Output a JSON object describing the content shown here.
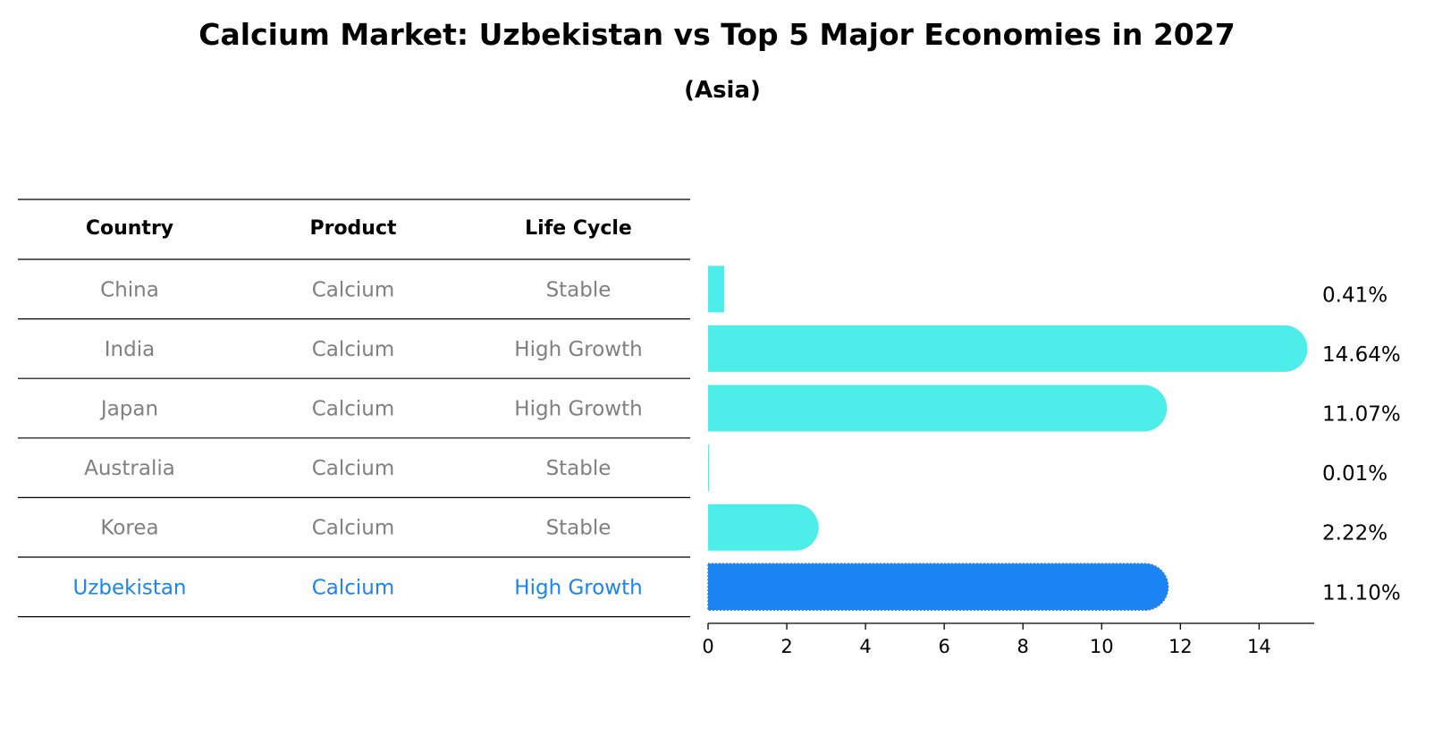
{
  "title": "Calcium Market: Uzbekistan vs Top 5 Major Economies in 2027",
  "subtitle": "(Asia)",
  "colors": {
    "bar": "#4DEEEA",
    "highlight_bar": "#1A85F2",
    "highlight_text": "#1A85F2",
    "row_text": "#808080",
    "rule": "#000000"
  },
  "table": {
    "headers": [
      "Country",
      "Product",
      "Life Cycle"
    ],
    "rows": [
      {
        "country": "China",
        "product": "Calcium",
        "life_cycle": "Stable",
        "highlight": false
      },
      {
        "country": "India",
        "product": "Calcium",
        "life_cycle": "High Growth",
        "highlight": false
      },
      {
        "country": "Japan",
        "product": "Calcium",
        "life_cycle": "High Growth",
        "highlight": false
      },
      {
        "country": "Australia",
        "product": "Calcium",
        "life_cycle": "Stable",
        "highlight": false
      },
      {
        "country": "Korea",
        "product": "Calcium",
        "life_cycle": "Stable",
        "highlight": false
      },
      {
        "country": "Uzbekistan",
        "product": "Calcium",
        "life_cycle": "High Growth",
        "highlight": true
      }
    ]
  },
  "chart_data": {
    "type": "bar",
    "orientation": "horizontal",
    "categories": [
      "China",
      "India",
      "Japan",
      "Australia",
      "Korea",
      "Uzbekistan"
    ],
    "values": [
      0.41,
      14.64,
      11.07,
      0.01,
      2.22,
      11.1
    ],
    "value_labels": [
      "0.41%",
      "14.64%",
      "11.07%",
      "0.01%",
      "2.22%",
      "11.10%"
    ],
    "highlight_category": "Uzbekistan",
    "xlim": [
      0,
      15.4
    ],
    "xticks": [
      0,
      2,
      4,
      6,
      8,
      10,
      12,
      14
    ],
    "grid": false
  }
}
